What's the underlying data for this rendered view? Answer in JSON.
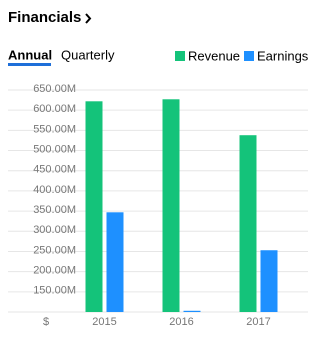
{
  "header": {
    "title": "Financials"
  },
  "tabs": [
    "Annual",
    "Quarterly"
  ],
  "chart_data": {
    "type": "bar",
    "currency": "$",
    "categories": [
      "2015",
      "2016",
      "2017"
    ],
    "series": [
      {
        "name": "Revenue",
        "color": "#14c37a",
        "values": [
          622000000,
          627000000,
          538000000
        ]
      },
      {
        "name": "Earnings",
        "color": "#1e90ff",
        "values": [
          347000000,
          103000000,
          253000000
        ]
      }
    ],
    "ylim": [
      100000000,
      650000000
    ],
    "yticks": [
      {
        "value": 150000000,
        "label": "150.00M"
      },
      {
        "value": 200000000,
        "label": "200.00M"
      },
      {
        "value": 250000000,
        "label": "250.00M"
      },
      {
        "value": 300000000,
        "label": "300.00M"
      },
      {
        "value": 350000000,
        "label": "350.00M"
      },
      {
        "value": 400000000,
        "label": "400.00M"
      },
      {
        "value": 450000000,
        "label": "450.00M"
      },
      {
        "value": 500000000,
        "label": "500.00M"
      },
      {
        "value": 550000000,
        "label": "550.00M"
      },
      {
        "value": 600000000,
        "label": "600.00M"
      },
      {
        "value": 650000000,
        "label": "650.00M"
      }
    ],
    "grid": true
  }
}
